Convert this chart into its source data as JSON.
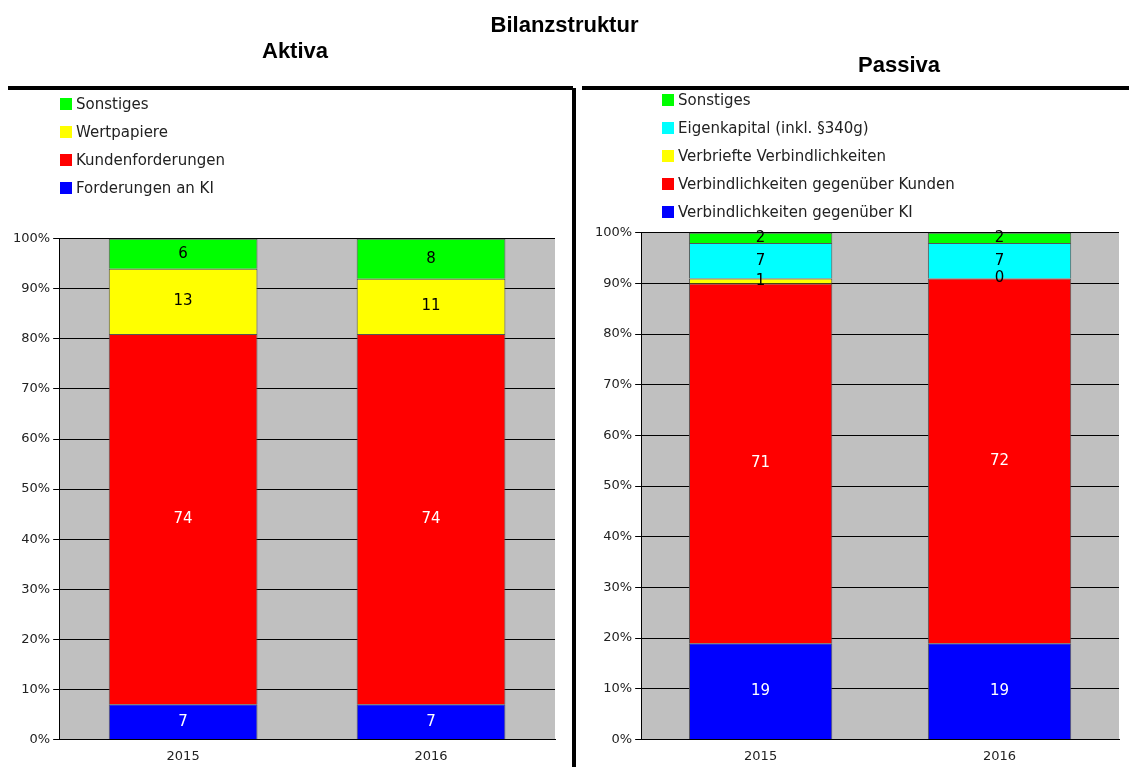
{
  "chart_data": [
    {
      "type": "bar",
      "title": "Aktiva",
      "annotations": [
        "Bilanzstruktur"
      ],
      "categories": [
        "2015",
        "2016"
      ],
      "stacked": true,
      "data_labels": true,
      "legend": "top left",
      "grid": "y",
      "ylim": [
        0,
        100
      ],
      "yticks": [
        {
          "value": 0,
          "label": "0%"
        },
        {
          "value": 10,
          "label": "10%"
        },
        {
          "value": 20,
          "label": "20%"
        },
        {
          "value": 30,
          "label": "30%"
        },
        {
          "value": 40,
          "label": "40%"
        },
        {
          "value": 50,
          "label": "50%"
        },
        {
          "value": 60,
          "label": "60%"
        },
        {
          "value": 70,
          "label": "70%"
        },
        {
          "value": 80,
          "label": "80%"
        },
        {
          "value": 90,
          "label": "90%"
        },
        {
          "value": 100,
          "label": "100%"
        }
      ],
      "series": [
        {
          "name": "Forderungen an KI",
          "color": "#0000ff",
          "values": [
            7,
            7
          ]
        },
        {
          "name": "Kundenforderungen",
          "color": "#ff0000",
          "values": [
            74,
            74
          ]
        },
        {
          "name": "Wertpapiere",
          "color": "#ffff00",
          "values": [
            13,
            11
          ]
        },
        {
          "name": "Sonstiges",
          "color": "#00ff00",
          "values": [
            6,
            8
          ]
        }
      ]
    },
    {
      "type": "bar",
      "title": "Passiva",
      "categories": [
        "2015",
        "2016"
      ],
      "stacked": true,
      "data_labels": true,
      "legend": "top left",
      "grid": "y",
      "ylim": [
        0,
        100
      ],
      "yticks": [
        {
          "value": 0,
          "label": "0%"
        },
        {
          "value": 10,
          "label": "10%"
        },
        {
          "value": 20,
          "label": "20%"
        },
        {
          "value": 30,
          "label": "30%"
        },
        {
          "value": 40,
          "label": "40%"
        },
        {
          "value": 50,
          "label": "50%"
        },
        {
          "value": 60,
          "label": "60%"
        },
        {
          "value": 70,
          "label": "70%"
        },
        {
          "value": 80,
          "label": "80%"
        },
        {
          "value": 90,
          "label": "90%"
        },
        {
          "value": 100,
          "label": "100%"
        }
      ],
      "series": [
        {
          "name": "Verbindlichkeiten gegenüber KI",
          "color": "#0000ff",
          "values": [
            19,
            19
          ]
        },
        {
          "name": "Verbindlichkeiten gegenüber Kunden",
          "color": "#ff0000",
          "values": [
            71,
            72
          ]
        },
        {
          "name": "Verbriefte Verbindlichkeiten",
          "color": "#ffff00",
          "values": [
            1,
            0
          ]
        },
        {
          "name": "Eigenkapital (inkl. §340g)",
          "color": "#00ffff",
          "values": [
            7,
            7
          ]
        },
        {
          "name": "Sonstiges",
          "color": "#00ff00",
          "values": [
            2,
            2
          ]
        }
      ]
    }
  ]
}
